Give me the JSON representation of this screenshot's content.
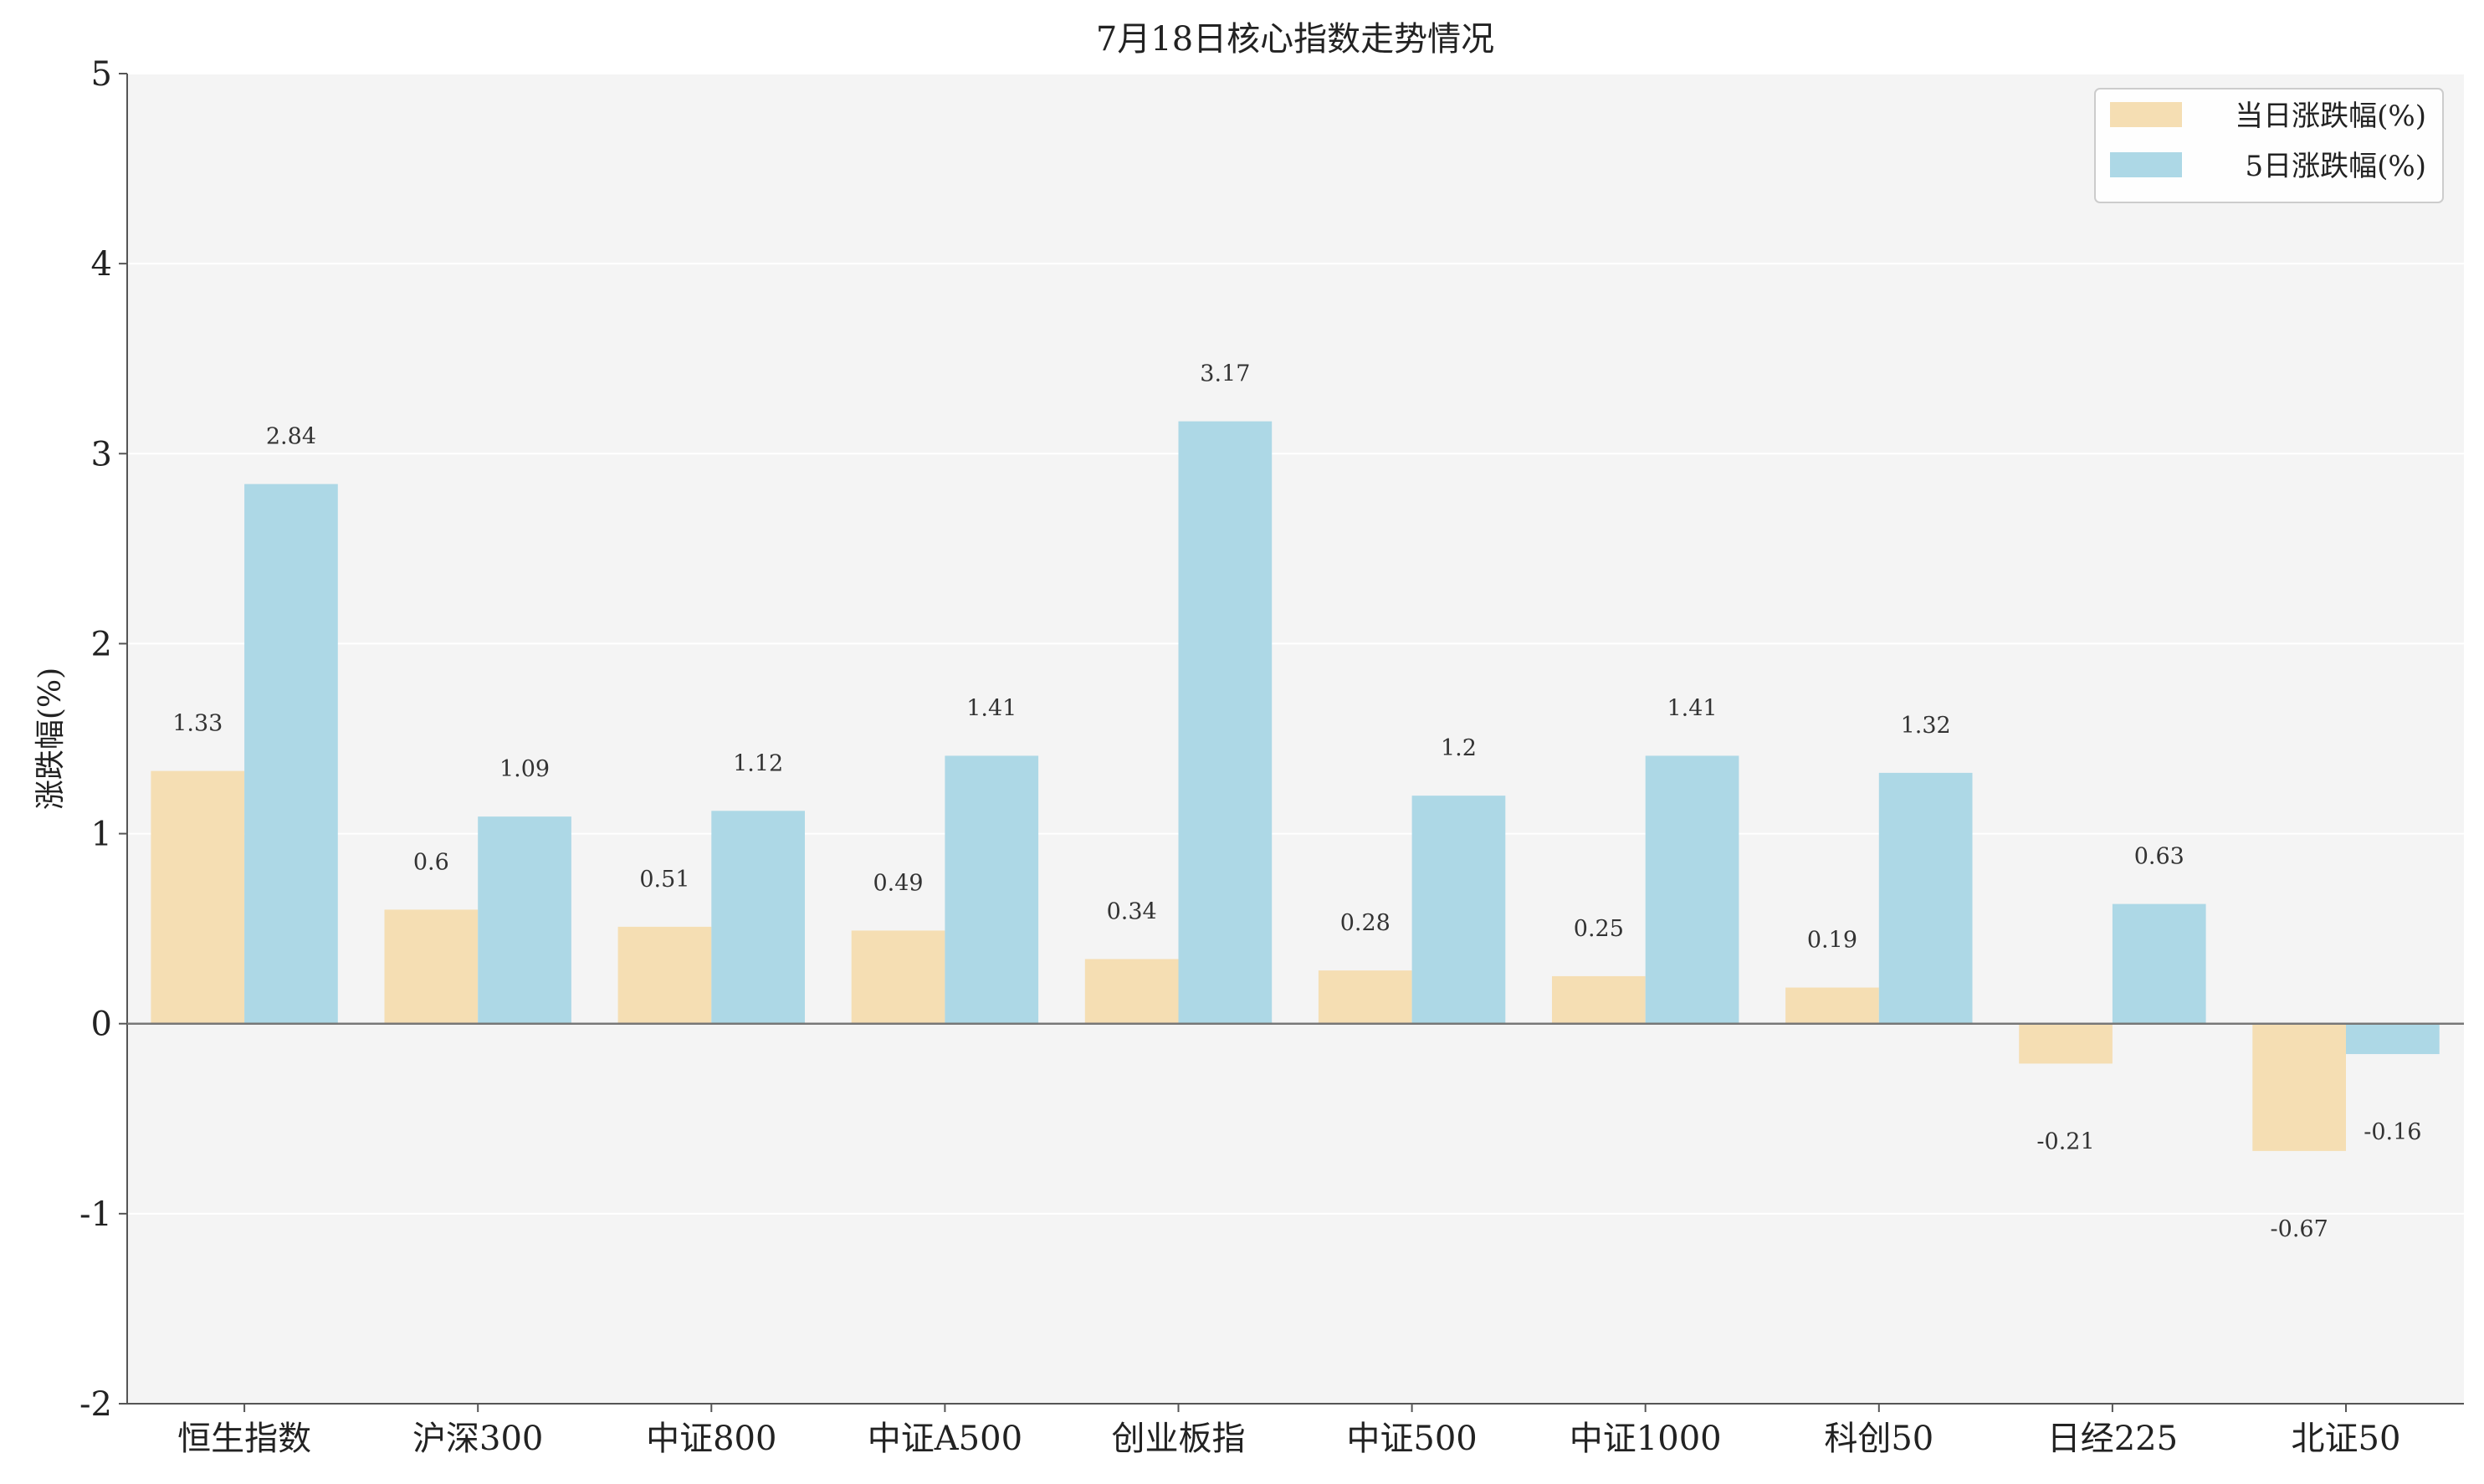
{
  "chart_data": {
    "type": "bar",
    "title": "7月18日核心指数走势情况",
    "xlabel": "",
    "ylabel": "涨跌幅(%)",
    "ylim": [
      -2,
      5
    ],
    "yticks": [
      -2,
      -1,
      0,
      1,
      2,
      3,
      4,
      5
    ],
    "grid": true,
    "legend_position": "top-right",
    "categories": [
      "恒生指数",
      "沪深300",
      "中证800",
      "中证A500",
      "创业板指",
      "中证500",
      "中证1000",
      "科创50",
      "日经225",
      "北证50"
    ],
    "series": [
      {
        "name": "当日涨跌幅(%)",
        "color": "#F5DEB3",
        "values": [
          1.33,
          0.6,
          0.51,
          0.49,
          0.34,
          0.28,
          0.25,
          0.19,
          -0.21,
          -0.67
        ]
      },
      {
        "name": "5日涨跌幅(%)",
        "color": "#ADD8E6",
        "values": [
          2.84,
          1.09,
          1.12,
          1.41,
          3.17,
          1.2,
          1.41,
          1.32,
          0.63,
          -0.16
        ]
      }
    ]
  }
}
